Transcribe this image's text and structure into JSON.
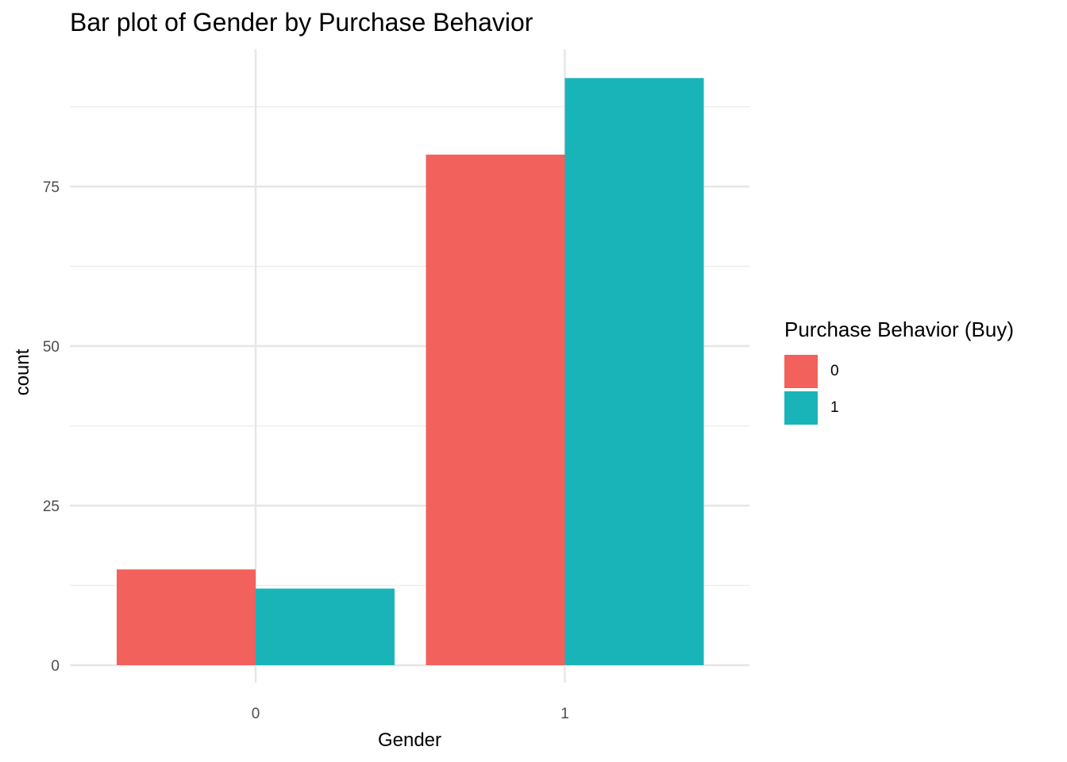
{
  "chart_data": {
    "type": "bar",
    "title": "Bar plot of Gender by Purchase Behavior",
    "xlabel": "Gender",
    "ylabel": "count",
    "categories": [
      "0",
      "1"
    ],
    "series": [
      {
        "name": "0",
        "values": [
          15,
          80
        ],
        "color": "#F2615C"
      },
      {
        "name": "1",
        "values": [
          12,
          92
        ],
        "color": "#19B4B8"
      }
    ],
    "ylim": [
      0,
      96
    ],
    "yticks": [
      0,
      25,
      50,
      75
    ],
    "legend_title": "Purchase Behavior (Buy)",
    "legend_position": "right",
    "grid": true
  }
}
